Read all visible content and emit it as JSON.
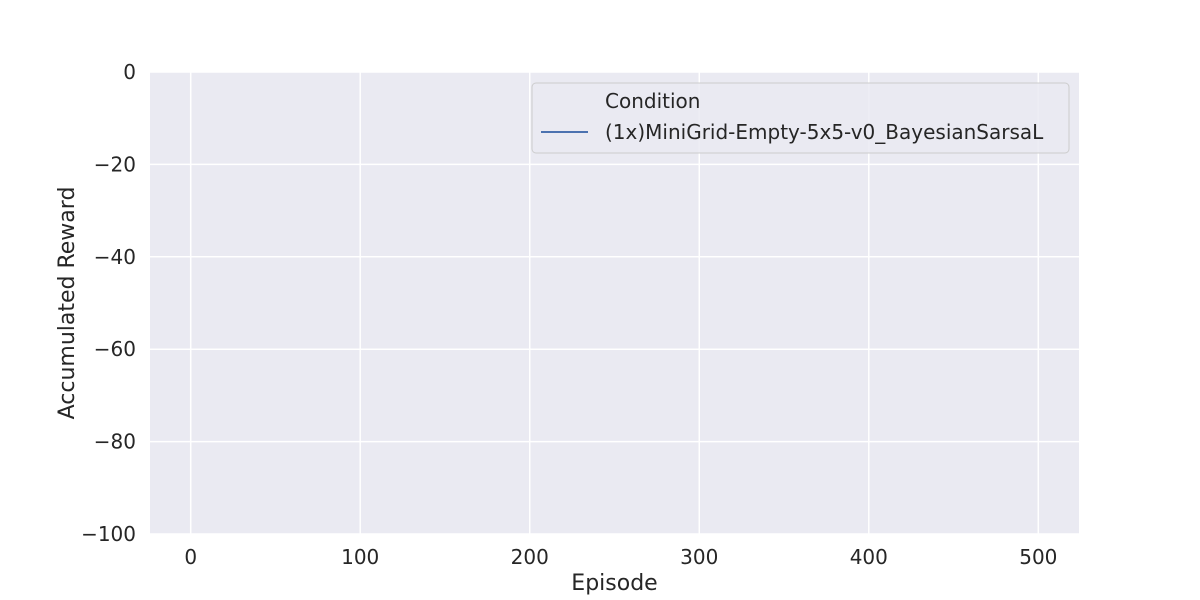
{
  "chart_data": {
    "type": "line",
    "title": "",
    "xlabel": "Episode",
    "ylabel": "Accumulated Reward",
    "xlim": [
      -24,
      524
    ],
    "ylim": [
      -100,
      0
    ],
    "xticks": [
      0,
      100,
      200,
      300,
      400,
      500
    ],
    "yticks": [
      0,
      -20,
      -40,
      -60,
      -80,
      -100
    ],
    "xtick_labels": [
      "0",
      "100",
      "200",
      "300",
      "400",
      "500"
    ],
    "ytick_labels": [
      "0",
      "−20",
      "−40",
      "−60",
      "−80",
      "−100"
    ],
    "grid": true,
    "legend": {
      "title": "Condition",
      "placement": "top-right"
    },
    "series": [
      {
        "name": "(1x)MiniGrid-Empty-5x5-v0_BayesianSarsaL",
        "color": "#4c72b0",
        "x": [],
        "y": []
      }
    ]
  },
  "colors": {
    "plot_background": "#eaeaf2",
    "grid": "#ffffff",
    "text": "#262626"
  }
}
